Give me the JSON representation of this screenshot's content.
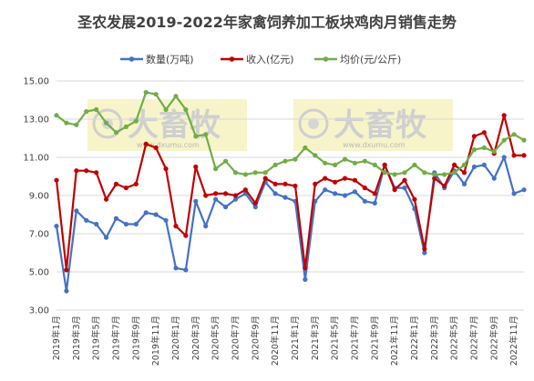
{
  "chart_data": {
    "type": "line",
    "title": "圣农发展2019-2022年家禽饲养加工板块鸡肉月销售走势",
    "xlabel": "",
    "ylabel": "",
    "ylim": [
      3.0,
      15.0
    ],
    "yticks": [
      "3.00",
      "5.00",
      "7.00",
      "9.00",
      "11.00",
      "13.00",
      "15.00"
    ],
    "legend_position": "top",
    "grid": true,
    "x": [
      "2019年1月",
      "2019年2月",
      "2019年3月",
      "2019年4月",
      "2019年5月",
      "2019年6月",
      "2019年7月",
      "2019年8月",
      "2019年9月",
      "2019年10月",
      "2019年11月",
      "2019年12月",
      "2020年1月",
      "2020年2月",
      "2020年3月",
      "2020年4月",
      "2020年5月",
      "2020年6月",
      "2020年7月",
      "2020年8月",
      "2020年9月",
      "2020年10月",
      "2020年11月",
      "2020年12月",
      "2021年1月",
      "2021年2月",
      "2021年3月",
      "2021年4月",
      "2021年5月",
      "2021年6月",
      "2021年7月",
      "2021年8月",
      "2021年9月",
      "2021年10月",
      "2021年11月",
      "2021年12月",
      "2022年1月",
      "2022年2月",
      "2022年3月",
      "2022年4月",
      "2022年5月",
      "2022年6月",
      "2022年7月",
      "2022年8月",
      "2022年9月",
      "2022年10月",
      "2022年11月",
      "2022年12月"
    ],
    "x_tick_labels_shown": [
      "2019年1月",
      "2019年3月",
      "2019年5月",
      "2019年7月",
      "2019年9月",
      "2019年11月",
      "2020年1月",
      "2020年3月",
      "2020年5月",
      "2020年7月",
      "2020年9月",
      "2020年11月",
      "2021年1月",
      "2021年3月",
      "2021年5月",
      "2021年7月",
      "2021年9月",
      "2021年11月",
      "2022年1月",
      "2022年3月",
      "2022年5月",
      "2022年7月",
      "2022年9月",
      "2022年11月"
    ],
    "series": [
      {
        "name": "数量(万吨)",
        "color": "#4472c4",
        "values": [
          7.4,
          4.0,
          8.2,
          7.7,
          7.5,
          6.8,
          7.8,
          7.5,
          7.5,
          8.1,
          8.0,
          7.7,
          5.2,
          5.1,
          8.7,
          7.4,
          8.8,
          8.4,
          8.8,
          9.1,
          8.4,
          9.7,
          9.1,
          8.9,
          8.7,
          4.6,
          8.7,
          9.3,
          9.1,
          9.0,
          9.2,
          8.7,
          8.6,
          10.6,
          9.4,
          9.4,
          8.3,
          6.0,
          10.2,
          9.4,
          10.3,
          9.6,
          10.5,
          10.6,
          9.9,
          11.0,
          9.1,
          9.3
        ]
      },
      {
        "name": "收入(亿元)",
        "color": "#c00000",
        "values": [
          9.8,
          5.1,
          10.3,
          10.3,
          10.2,
          8.8,
          9.6,
          9.4,
          9.6,
          11.7,
          11.5,
          10.4,
          7.4,
          6.9,
          10.5,
          9.0,
          9.1,
          9.1,
          9.0,
          9.3,
          8.6,
          9.9,
          9.6,
          9.6,
          9.5,
          5.2,
          9.6,
          9.9,
          9.7,
          9.9,
          9.8,
          9.4,
          9.1,
          10.6,
          9.3,
          9.8,
          8.8,
          6.2,
          9.9,
          9.5,
          10.6,
          10.2,
          12.1,
          12.3,
          11.2,
          13.2,
          11.1,
          11.1
        ]
      },
      {
        "name": "均价(元/公斤)",
        "color": "#70ad47",
        "values": [
          13.2,
          12.8,
          12.7,
          13.4,
          13.5,
          12.8,
          12.3,
          12.6,
          12.9,
          14.4,
          14.3,
          13.5,
          14.2,
          13.5,
          12.1,
          12.2,
          10.4,
          10.8,
          10.2,
          10.1,
          10.2,
          10.2,
          10.6,
          10.8,
          10.9,
          11.5,
          11.1,
          10.7,
          10.6,
          10.9,
          10.7,
          10.8,
          10.6,
          10.2,
          10.1,
          10.2,
          10.6,
          10.2,
          10.1,
          10.1,
          10.2,
          10.6,
          11.4,
          11.5,
          11.3,
          11.9,
          12.2,
          11.9
        ]
      }
    ]
  },
  "watermark": {
    "logo_text": "大畜牧",
    "url": "www.dxumu.com"
  }
}
